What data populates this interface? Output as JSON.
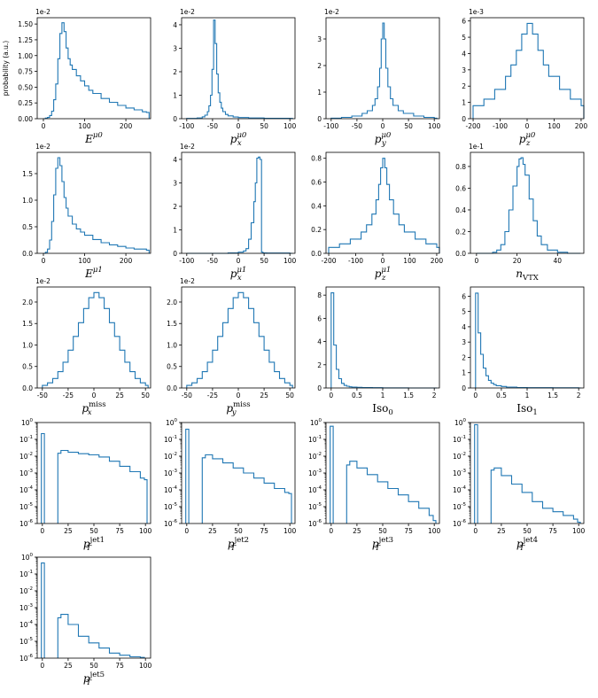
{
  "chart_data": [
    {
      "id": "E_mu0",
      "type": "line",
      "xlabel_base": "E",
      "xlabel_sup": "μ0",
      "xlabel_sub": "",
      "ylabel": "probability (a.u.)",
      "multiplier": "1e-2",
      "xlim": [
        -15,
        260
      ],
      "ylim": [
        0,
        1.6
      ],
      "xticks": [
        0,
        100,
        200
      ],
      "yticks": [
        0.0,
        0.25,
        0.5,
        0.75,
        1.0,
        1.25,
        1.5
      ],
      "ytick_labels": [
        "0.00",
        "0.25",
        "0.50",
        "0.75",
        "1.00",
        "1.25",
        "1.50"
      ],
      "x": [
        0,
        5,
        10,
        15,
        20,
        25,
        30,
        35,
        40,
        45,
        50,
        55,
        60,
        65,
        70,
        80,
        90,
        100,
        110,
        120,
        140,
        160,
        180,
        200,
        220,
        240,
        250
      ],
      "values": [
        0.0,
        0.01,
        0.02,
        0.05,
        0.12,
        0.3,
        0.55,
        0.95,
        1.35,
        1.52,
        1.38,
        1.12,
        0.95,
        0.85,
        0.78,
        0.68,
        0.6,
        0.52,
        0.45,
        0.4,
        0.32,
        0.26,
        0.21,
        0.17,
        0.14,
        0.11,
        0.1
      ]
    },
    {
      "id": "px_mu0",
      "type": "line",
      "xlabel_base": "p",
      "xlabel_sup": "μ0",
      "xlabel_sub": "x",
      "multiplier": "1e-2",
      "xlim": [
        -110,
        110
      ],
      "ylim": [
        0,
        4.3
      ],
      "xticks": [
        -100,
        -50,
        0,
        50,
        100
      ],
      "yticks": [
        0,
        1,
        2,
        3,
        4
      ],
      "ytick_labels": [
        "0",
        "1",
        "2",
        "3",
        "4"
      ],
      "x": [
        -100,
        -80,
        -70,
        -65,
        -60,
        -57,
        -54,
        -51,
        -48,
        -45,
        -42,
        -39,
        -36,
        -33,
        -30,
        -25,
        -20,
        -10,
        0,
        20,
        50,
        100
      ],
      "values": [
        0.01,
        0.03,
        0.08,
        0.15,
        0.3,
        0.55,
        1.0,
        2.1,
        4.2,
        3.2,
        1.9,
        1.1,
        0.7,
        0.45,
        0.3,
        0.18,
        0.12,
        0.07,
        0.05,
        0.03,
        0.02,
        0.01
      ]
    },
    {
      "id": "py_mu0",
      "type": "line",
      "xlabel_base": "p",
      "xlabel_sup": "μ0",
      "xlabel_sub": "y",
      "multiplier": "1e-2",
      "xlim": [
        -110,
        110
      ],
      "ylim": [
        0,
        3.8
      ],
      "xticks": [
        -100,
        -50,
        0,
        50,
        100
      ],
      "yticks": [
        0,
        1,
        2,
        3
      ],
      "ytick_labels": [
        "0",
        "1",
        "2",
        "3"
      ],
      "x": [
        -100,
        -80,
        -60,
        -40,
        -30,
        -20,
        -15,
        -10,
        -6,
        -3,
        0,
        3,
        6,
        10,
        15,
        20,
        30,
        40,
        60,
        80,
        100
      ],
      "values": [
        0.02,
        0.05,
        0.1,
        0.2,
        0.3,
        0.5,
        0.75,
        1.2,
        1.9,
        3.0,
        3.6,
        3.0,
        1.9,
        1.2,
        0.75,
        0.5,
        0.3,
        0.2,
        0.1,
        0.05,
        0.02
      ]
    },
    {
      "id": "pz_mu0",
      "type": "line",
      "xlabel_base": "p",
      "xlabel_sup": "μ0",
      "xlabel_sub": "z",
      "multiplier": "1e-3",
      "xlim": [
        -210,
        210
      ],
      "ylim": [
        0,
        6.2
      ],
      "xticks": [
        -200,
        -100,
        0,
        100,
        200
      ],
      "yticks": [
        0,
        1,
        2,
        3,
        4,
        5,
        6
      ],
      "ytick_labels": [
        "0",
        "1",
        "2",
        "3",
        "4",
        "5",
        "6"
      ],
      "x": [
        -200,
        -160,
        -120,
        -80,
        -60,
        -40,
        -20,
        0,
        20,
        40,
        60,
        80,
        120,
        160,
        200
      ],
      "values": [
        0.8,
        1.2,
        1.8,
        2.6,
        3.3,
        4.2,
        5.2,
        5.85,
        5.2,
        4.2,
        3.3,
        2.6,
        1.8,
        1.2,
        0.8
      ]
    },
    {
      "id": "E_mu1",
      "type": "line",
      "xlabel_base": "E",
      "xlabel_sup": "μ1",
      "xlabel_sub": "",
      "multiplier": "1e-2",
      "xlim": [
        -15,
        260
      ],
      "ylim": [
        0,
        1.9
      ],
      "xticks": [
        0,
        100,
        200
      ],
      "yticks": [
        0.0,
        0.5,
        1.0,
        1.5
      ],
      "ytick_labels": [
        "0.0",
        "0.5",
        "1.0",
        "1.5"
      ],
      "x": [
        0,
        5,
        10,
        15,
        20,
        25,
        30,
        35,
        40,
        45,
        50,
        55,
        60,
        70,
        80,
        90,
        100,
        120,
        140,
        160,
        180,
        200,
        220,
        250
      ],
      "values": [
        0.0,
        0.02,
        0.08,
        0.25,
        0.6,
        1.1,
        1.6,
        1.8,
        1.65,
        1.35,
        1.05,
        0.85,
        0.7,
        0.55,
        0.46,
        0.4,
        0.34,
        0.26,
        0.2,
        0.16,
        0.13,
        0.1,
        0.08,
        0.06
      ]
    },
    {
      "id": "px_mu1",
      "type": "line",
      "xlabel_base": "p",
      "xlabel_sup": "μ1",
      "xlabel_sub": "x",
      "multiplier": "1e-2",
      "xlim": [
        -110,
        110
      ],
      "ylim": [
        0,
        4.3
      ],
      "xticks": [
        -100,
        -50,
        0,
        50,
        100
      ],
      "yticks": [
        0,
        1,
        2,
        3,
        4
      ],
      "ytick_labels": [
        "0",
        "1",
        "2",
        "3",
        "4"
      ],
      "x": [
        -100,
        -50,
        -20,
        0,
        10,
        15,
        20,
        25,
        30,
        33,
        36,
        39,
        42,
        45,
        48,
        55,
        100
      ],
      "values": [
        0.0,
        0.0,
        0.02,
        0.05,
        0.1,
        0.2,
        0.6,
        1.3,
        2.2,
        3.0,
        4.05,
        4.1,
        4.0,
        0.05,
        0.02,
        0.01,
        0.0
      ]
    },
    {
      "id": "pz_mu1",
      "type": "line",
      "xlabel_base": "p",
      "xlabel_sup": "μ1",
      "xlabel_sub": "z",
      "multiplier": "",
      "xlim": [
        -210,
        210
      ],
      "ylim": [
        0,
        0.85
      ],
      "xticks": [
        -200,
        -100,
        0,
        100,
        200
      ],
      "yticks": [
        0.0,
        0.2,
        0.4,
        0.6,
        0.8
      ],
      "ytick_labels": [
        "0.0",
        "0.2",
        "0.4",
        "0.6",
        "0.8"
      ],
      "x": [
        -200,
        -160,
        -120,
        -80,
        -60,
        -40,
        -25,
        -15,
        -8,
        0,
        8,
        15,
        25,
        40,
        60,
        80,
        120,
        160,
        200
      ],
      "values": [
        0.05,
        0.08,
        0.12,
        0.18,
        0.24,
        0.33,
        0.45,
        0.58,
        0.72,
        0.8,
        0.72,
        0.58,
        0.45,
        0.33,
        0.24,
        0.18,
        0.12,
        0.08,
        0.05
      ]
    },
    {
      "id": "n_vtx",
      "type": "line",
      "xlabel_base": "n",
      "xlabel_sup": "",
      "xlabel_sub": "VTX",
      "multiplier": "1e-1",
      "xlim": [
        -3,
        53
      ],
      "ylim": [
        0,
        0.93
      ],
      "xticks": [
        0,
        20,
        40
      ],
      "yticks": [
        0.0,
        0.2,
        0.4,
        0.6,
        0.8
      ],
      "ytick_labels": [
        "0.0",
        "0.2",
        "0.4",
        "0.6",
        "0.8"
      ],
      "x": [
        0,
        5,
        8,
        10,
        12,
        14,
        16,
        18,
        20,
        21,
        22,
        23,
        24,
        26,
        28,
        30,
        32,
        35,
        40,
        45,
        50
      ],
      "values": [
        0.0,
        0.0,
        0.01,
        0.03,
        0.08,
        0.2,
        0.4,
        0.62,
        0.8,
        0.87,
        0.88,
        0.82,
        0.72,
        0.5,
        0.3,
        0.16,
        0.08,
        0.03,
        0.01,
        0.0,
        0.0
      ]
    },
    {
      "id": "px_miss",
      "type": "line",
      "xlabel_base": "p",
      "xlabel_sup": "miss",
      "xlabel_sub": "x",
      "multiplier": "1e-2",
      "xlim": [
        -55,
        55
      ],
      "ylim": [
        0,
        2.35
      ],
      "xticks": [
        -50,
        -25,
        0,
        25,
        50
      ],
      "yticks": [
        0.0,
        0.5,
        1.0,
        1.5,
        2.0
      ],
      "ytick_labels": [
        "0.0",
        "0.5",
        "1.0",
        "1.5",
        "2.0"
      ],
      "x": [
        -50,
        -45,
        -40,
        -35,
        -30,
        -25,
        -20,
        -15,
        -10,
        -5,
        0,
        5,
        10,
        15,
        20,
        25,
        30,
        35,
        40,
        45,
        50
      ],
      "values": [
        0.06,
        0.12,
        0.22,
        0.38,
        0.6,
        0.88,
        1.2,
        1.52,
        1.85,
        2.1,
        2.22,
        2.1,
        1.85,
        1.52,
        1.2,
        0.88,
        0.6,
        0.38,
        0.22,
        0.12,
        0.06
      ]
    },
    {
      "id": "py_miss",
      "type": "line",
      "xlabel_base": "p",
      "xlabel_sup": "miss",
      "xlabel_sub": "y",
      "multiplier": "1e-2",
      "xlim": [
        -55,
        55
      ],
      "ylim": [
        0,
        2.35
      ],
      "xticks": [
        -50,
        -25,
        0,
        25,
        50
      ],
      "yticks": [
        0.0,
        0.5,
        1.0,
        1.5,
        2.0
      ],
      "ytick_labels": [
        "0.0",
        "0.5",
        "1.0",
        "1.5",
        "2.0"
      ],
      "x": [
        -50,
        -45,
        -40,
        -35,
        -30,
        -25,
        -20,
        -15,
        -10,
        -5,
        0,
        5,
        10,
        15,
        20,
        25,
        30,
        35,
        40,
        45,
        50
      ],
      "values": [
        0.06,
        0.12,
        0.22,
        0.38,
        0.6,
        0.88,
        1.2,
        1.52,
        1.85,
        2.1,
        2.22,
        2.1,
        1.85,
        1.52,
        1.2,
        0.88,
        0.6,
        0.38,
        0.22,
        0.12,
        0.06
      ]
    },
    {
      "id": "iso0",
      "type": "line",
      "xlabel_base": "Iso",
      "xlabel_sup": "",
      "xlabel_sub": "0",
      "multiplier": "",
      "xlim": [
        -0.1,
        2.1
      ],
      "ylim": [
        0,
        8.7
      ],
      "xticks": [
        0.0,
        0.5,
        1.0,
        1.5,
        2.0
      ],
      "yticks": [
        0,
        2,
        4,
        6,
        8
      ],
      "ytick_labels": [
        "0",
        "2",
        "4",
        "6",
        "8"
      ],
      "x": [
        0.0,
        0.05,
        0.1,
        0.15,
        0.2,
        0.25,
        0.3,
        0.35,
        0.4,
        0.5,
        0.6,
        0.8,
        1.0,
        1.5,
        2.0
      ],
      "values": [
        8.2,
        3.7,
        1.6,
        0.8,
        0.4,
        0.22,
        0.15,
        0.1,
        0.07,
        0.05,
        0.03,
        0.02,
        0.01,
        0.0,
        0.0
      ]
    },
    {
      "id": "iso1",
      "type": "line",
      "xlabel_base": "Iso",
      "xlabel_sup": "",
      "xlabel_sub": "1",
      "multiplier": "",
      "xlim": [
        -0.1,
        2.1
      ],
      "ylim": [
        0,
        6.6
      ],
      "xticks": [
        0.0,
        0.5,
        1.0,
        1.5,
        2.0
      ],
      "yticks": [
        0,
        1,
        2,
        3,
        4,
        5,
        6
      ],
      "ytick_labels": [
        "0",
        "1",
        "2",
        "3",
        "4",
        "5",
        "6"
      ],
      "x": [
        0.0,
        0.05,
        0.1,
        0.15,
        0.2,
        0.25,
        0.3,
        0.35,
        0.4,
        0.5,
        0.6,
        0.8,
        1.0,
        1.5,
        2.0
      ],
      "values": [
        6.2,
        3.6,
        2.2,
        1.3,
        0.8,
        0.5,
        0.32,
        0.22,
        0.15,
        0.1,
        0.06,
        0.03,
        0.02,
        0.01,
        0.0
      ]
    },
    {
      "id": "pt_jet1",
      "type": "line",
      "log": true,
      "xlabel_base": "p",
      "xlabel_sup": "jet1",
      "xlabel_sub": "T",
      "multiplier": "",
      "xlim": [
        -5,
        105
      ],
      "ylim_exp": [
        -6,
        0
      ],
      "xticks": [
        0,
        25,
        50,
        75,
        100
      ],
      "ytick_exps": [
        0,
        -1,
        -2,
        -3,
        -4,
        -5,
        -6
      ],
      "x": [
        -1,
        2,
        15,
        18,
        25,
        35,
        45,
        55,
        65,
        75,
        85,
        95,
        99
      ],
      "values": [
        0.22,
        null,
        0.015,
        0.022,
        0.017,
        0.014,
        0.012,
        0.009,
        0.005,
        0.0025,
        0.0012,
        0.0005,
        0.0004
      ]
    },
    {
      "id": "pt_jet2",
      "type": "line",
      "log": true,
      "xlabel_base": "p",
      "xlabel_sup": "jet2",
      "xlabel_sub": "T",
      "multiplier": "",
      "xlim": [
        -5,
        105
      ],
      "ylim_exp": [
        -6,
        0
      ],
      "xticks": [
        0,
        25,
        50,
        75,
        100
      ],
      "ytick_exps": [
        0,
        -1,
        -2,
        -3,
        -4,
        -5,
        -6
      ],
      "x": [
        -1,
        2,
        15,
        18,
        25,
        35,
        45,
        55,
        65,
        75,
        85,
        95,
        99
      ],
      "values": [
        0.4,
        null,
        0.008,
        0.012,
        0.007,
        0.004,
        0.002,
        0.001,
        0.0005,
        0.00025,
        0.00012,
        7e-05,
        6e-05
      ]
    },
    {
      "id": "pt_jet3",
      "type": "line",
      "log": true,
      "xlabel_base": "p",
      "xlabel_sup": "jet3",
      "xlabel_sub": "T",
      "multiplier": "",
      "xlim": [
        -5,
        105
      ],
      "ylim_exp": [
        -6,
        0
      ],
      "xticks": [
        0,
        25,
        50,
        75,
        100
      ],
      "ytick_exps": [
        0,
        -1,
        -2,
        -3,
        -4,
        -5,
        -6
      ],
      "x": [
        -1,
        2,
        15,
        18,
        25,
        35,
        45,
        55,
        65,
        75,
        85,
        95,
        99
      ],
      "values": [
        0.6,
        null,
        0.003,
        0.005,
        0.002,
        0.0008,
        0.0003,
        0.00012,
        5e-05,
        2e-05,
        8e-06,
        3e-06,
        1.5e-06
      ]
    },
    {
      "id": "pt_jet4",
      "type": "line",
      "log": true,
      "xlabel_base": "p",
      "xlabel_sup": "jet4",
      "xlabel_sub": "T",
      "multiplier": "",
      "xlim": [
        -5,
        105
      ],
      "ylim_exp": [
        -6,
        0
      ],
      "xticks": [
        0,
        25,
        50,
        75,
        100
      ],
      "ytick_exps": [
        0,
        -1,
        -2,
        -3,
        -4,
        -5,
        -6
      ],
      "x": [
        -1,
        2,
        15,
        18,
        25,
        35,
        45,
        55,
        65,
        75,
        85,
        95,
        99
      ],
      "values": [
        0.75,
        null,
        0.0015,
        0.002,
        0.0007,
        0.00022,
        7e-05,
        2e-05,
        8e-06,
        5e-06,
        3e-06,
        1.8e-06,
        1.2e-06
      ]
    },
    {
      "id": "pt_jet5",
      "type": "line",
      "log": true,
      "xlabel_base": "p",
      "xlabel_sup": "jet5",
      "xlabel_sub": "T",
      "multiplier": "",
      "xlim": [
        -5,
        105
      ],
      "ylim_exp": [
        -6,
        0
      ],
      "xticks": [
        0,
        25,
        50,
        75,
        100
      ],
      "ytick_exps": [
        0,
        -1,
        -2,
        -3,
        -4,
        -5,
        -6
      ],
      "x": [
        -1,
        2,
        15,
        18,
        25,
        35,
        45,
        55,
        65,
        75,
        85,
        95,
        99
      ],
      "values": [
        0.45,
        null,
        0.00025,
        0.0004,
        0.0001,
        2e-05,
        8e-06,
        4e-06,
        2e-06,
        1.5e-06,
        1.2e-06,
        1.1e-06,
        null
      ]
    }
  ]
}
